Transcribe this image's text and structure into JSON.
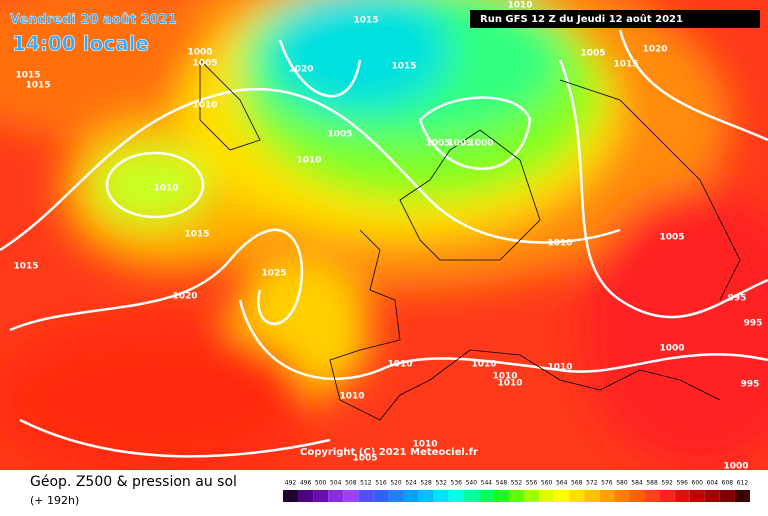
{
  "header": {
    "date": "Vendredi 20 août 2021",
    "time": "14:00 locale",
    "run": "Run GFS 12 Z du Jeudi 12 août 2021"
  },
  "map": {
    "isobar_labels": [
      "1015",
      "1005",
      "1000",
      "1015",
      "1015",
      "1020",
      "1015",
      "1010",
      "1005",
      "1020",
      "1015",
      "1010",
      "1005",
      "1010",
      "1005",
      "1005",
      "1000",
      "1010",
      "1015",
      "1015",
      "1025",
      "1020",
      "1010",
      "1005",
      "995",
      "995",
      "1000",
      "995",
      "1010",
      "1010",
      "1010",
      "1010",
      "1010",
      "1010",
      "1010",
      "1005",
      "1000"
    ],
    "copyright": "Copyright (C) 2021 Meteociel.fr"
  },
  "legend": {
    "title": "Géop. Z500 & pression au sol",
    "subtitle": "(+ 192h)",
    "steps": [
      492,
      496,
      500,
      504,
      508,
      512,
      516,
      520,
      524,
      528,
      532,
      536,
      540,
      544,
      548,
      552,
      556,
      560,
      564,
      568,
      572,
      576,
      580,
      584,
      588,
      592,
      596,
      600,
      604,
      608,
      612
    ],
    "colors": [
      "#200030",
      "#4b0082",
      "#6a0dad",
      "#8a2be2",
      "#a040ff",
      "#5050ff",
      "#3060ff",
      "#2080ff",
      "#00a0ff",
      "#00c0ff",
      "#00e0ff",
      "#00ffe0",
      "#00ffa0",
      "#00ff60",
      "#20ff20",
      "#60ff00",
      "#a0ff00",
      "#e0ff00",
      "#ffff00",
      "#ffe000",
      "#ffc000",
      "#ffa000",
      "#ff8000",
      "#ff6000",
      "#ff4020",
      "#ff2020",
      "#e01010",
      "#c00000",
      "#a00000",
      "#800000",
      "#400000"
    ]
  }
}
